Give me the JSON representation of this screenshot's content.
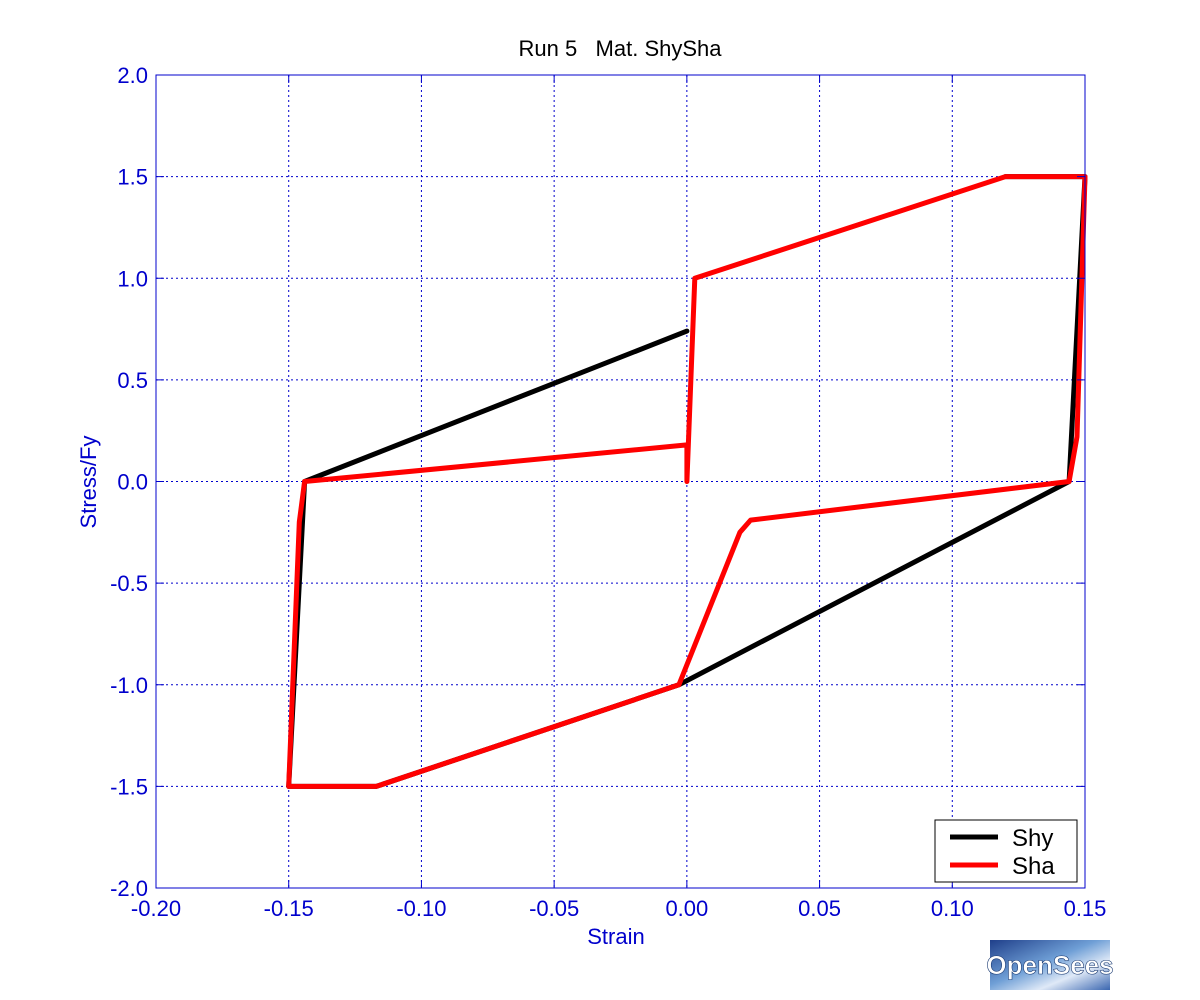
{
  "chart_data": {
    "type": "line",
    "title": "Run 5   Mat. ShySha",
    "xlabel": "Strain",
    "ylabel": "Stress/Fy",
    "xlim": [
      -0.2,
      0.15
    ],
    "ylim": [
      -2.0,
      2.0
    ],
    "xticks": [
      -0.2,
      -0.15,
      -0.1,
      -0.05,
      0.0,
      0.05,
      0.1,
      0.15
    ],
    "xtick_labels": [
      "-0.20",
      "-0.15",
      "-0.10",
      "-0.05",
      "0.00",
      "0.05",
      "0.10",
      "0.15"
    ],
    "yticks": [
      2.0,
      1.5,
      1.0,
      0.5,
      0.0,
      -0.5,
      -1.0,
      -1.5,
      -2.0
    ],
    "ytick_labels": [
      "2.0",
      "1.5",
      "1.0",
      "0.5",
      "0.0",
      "-0.5",
      "-1.0",
      "-1.5",
      "-2.0"
    ],
    "grid": true,
    "legend_position": "bottom-right",
    "series": [
      {
        "name": "Shy",
        "color": "#000000",
        "points": [
          [
            0.0,
            0.74
          ],
          [
            -0.144,
            0.0
          ],
          [
            -0.15,
            -1.5
          ],
          [
            -0.117,
            -1.5
          ],
          [
            -0.003,
            -1.0
          ],
          [
            0.144,
            0.0
          ],
          [
            0.15,
            1.5
          ],
          [
            0.12,
            1.5
          ]
        ]
      },
      {
        "name": "Sha",
        "color": "#ff0000",
        "points": [
          [
            0.0,
            0.0
          ],
          [
            0.0,
            0.18
          ],
          [
            -0.144,
            0.0
          ],
          [
            -0.146,
            -0.2
          ],
          [
            -0.15,
            -1.5
          ],
          [
            -0.117,
            -1.5
          ],
          [
            -0.003,
            -1.0
          ],
          [
            0.02,
            -0.25
          ],
          [
            0.024,
            -0.19
          ],
          [
            0.144,
            0.0
          ],
          [
            0.147,
            0.22
          ],
          [
            0.15,
            1.5
          ],
          [
            0.12,
            1.5
          ],
          [
            0.003,
            1.0
          ],
          [
            0.0,
            0.0
          ]
        ]
      }
    ]
  },
  "logo": {
    "text": "OpenSees"
  }
}
